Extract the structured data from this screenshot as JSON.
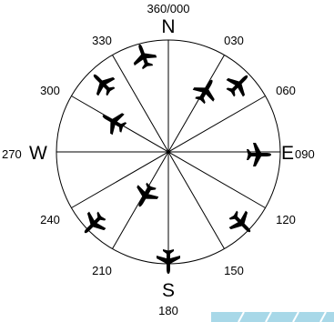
{
  "headings": {
    "north": {
      "letter": "N",
      "degrees": "360/000"
    },
    "east": {
      "letter": "E",
      "degrees": "090"
    },
    "south": {
      "letter": "S",
      "degrees": "180"
    },
    "west": {
      "letter": "W",
      "degrees": "270"
    },
    "ticks": [
      "030",
      "060",
      "120",
      "150",
      "210",
      "240",
      "300",
      "330"
    ]
  },
  "colors": {
    "line": "#000000",
    "aircraft": "#000000",
    "stripe": "#a8d8e8"
  },
  "aircraft_icon": "airplane-icon"
}
